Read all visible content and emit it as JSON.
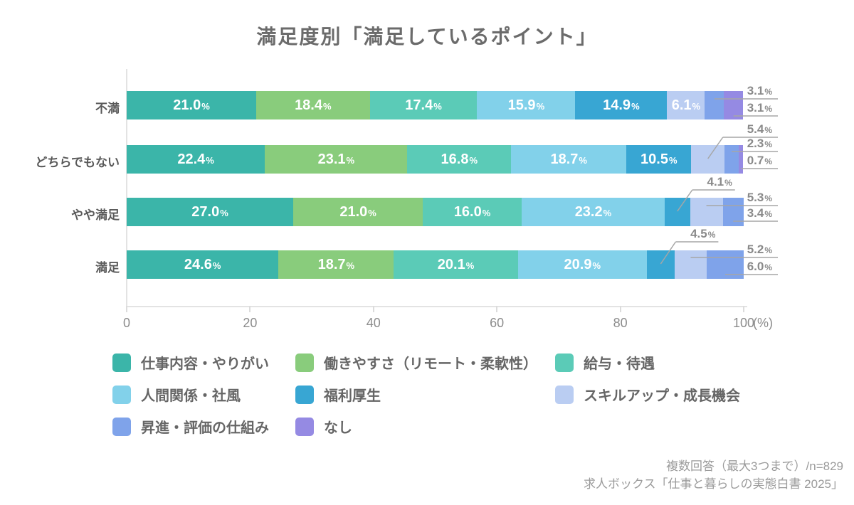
{
  "title": "満足度別「満足しているポイント」",
  "chart_data": {
    "type": "bar",
    "variant": "horizontal-stacked",
    "unit": "%",
    "grid": false,
    "legend_position": "bottom",
    "categories": [
      "不満",
      "どちらでもない",
      "やや満足",
      "満足"
    ],
    "series": [
      {
        "name": "仕事内容・やりがい",
        "color": "#3BB5A9"
      },
      {
        "name": "働きやすさ（リモート・柔軟性）",
        "color": "#89CC7C"
      },
      {
        "name": "給与・待遇",
        "color": "#5BCBB7"
      },
      {
        "name": "人間関係・社風",
        "color": "#82D1EA"
      },
      {
        "name": "福利厚生",
        "color": "#38A6D3"
      },
      {
        "name": "スキルアップ・成長機会",
        "color": "#BACDF2"
      },
      {
        "name": "昇進・評価の仕組み",
        "color": "#7FA3EA"
      },
      {
        "name": "なし",
        "color": "#958AE3"
      }
    ],
    "rows": [
      {
        "category": "不満",
        "values": [
          21.0,
          18.4,
          17.4,
          15.9,
          14.9,
          6.1,
          3.1,
          3.1
        ]
      },
      {
        "category": "どちらでもない",
        "values": [
          22.4,
          23.1,
          16.8,
          18.7,
          10.5,
          5.4,
          2.3,
          0.7
        ]
      },
      {
        "category": "やや満足",
        "values": [
          27.0,
          21.0,
          16.0,
          23.2,
          4.1,
          5.3,
          3.4,
          0
        ]
      },
      {
        "category": "満足",
        "values": [
          24.6,
          18.7,
          20.1,
          20.9,
          4.5,
          5.2,
          6.0,
          0
        ]
      }
    ],
    "outside_label_start": [
      6,
      5,
      4,
      4
    ],
    "x_axis": {
      "ticks": [
        0,
        20,
        40,
        60,
        80,
        100
      ],
      "suffix": "(%)",
      "min": 0,
      "max": 100
    }
  },
  "footer": {
    "line1": "複数回答（最大3つまで）/n=829",
    "line2": "求人ボックス「仕事と暮らしの実態白書 2025」"
  }
}
